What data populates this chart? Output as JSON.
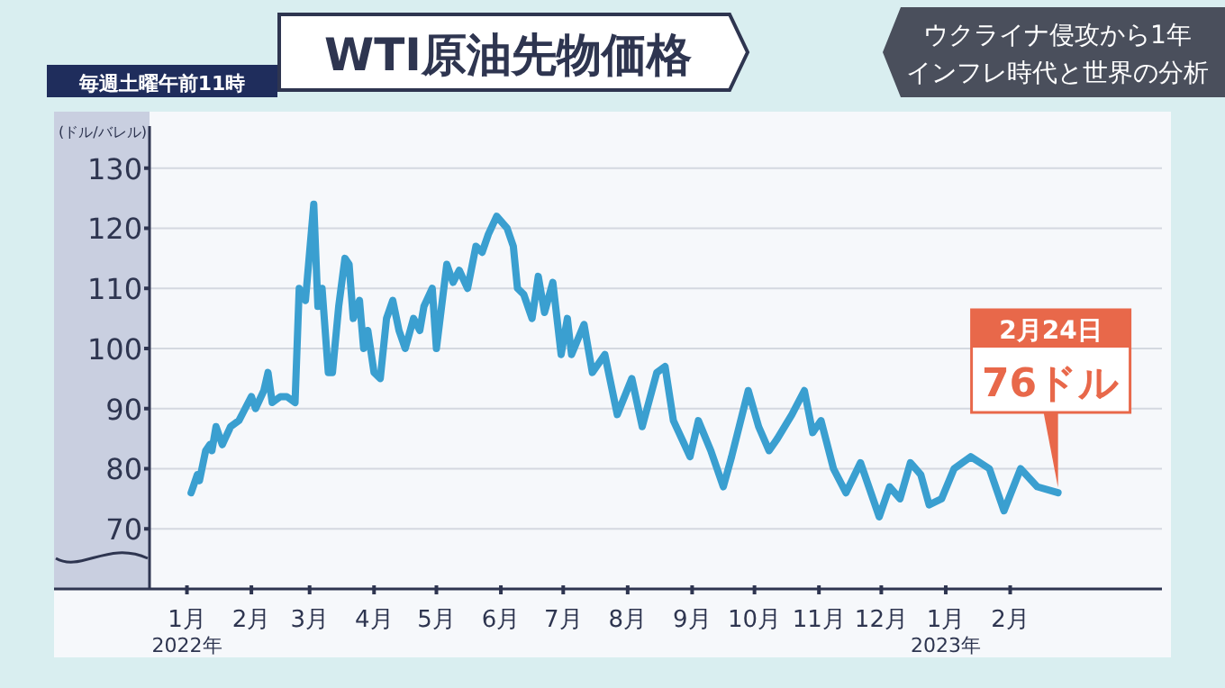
{
  "chart_data": {
    "type": "line",
    "title": "WTI原油先物価格",
    "subtitle": "ウクライナ侵攻から1年インフレ時代と世界の分析",
    "ylabel": "(ドル/バレル)",
    "annotations": [
      "毎週土曜午前11時",
      "2月24日",
      "76ドル"
    ],
    "x": [
      "2022-01-03",
      "2022-01-06",
      "2022-01-07",
      "2022-01-10",
      "2022-01-12",
      "2022-01-13",
      "2022-01-15",
      "2022-01-18",
      "2022-01-22",
      "2022-01-26",
      "2022-01-29",
      "2022-02-01",
      "2022-02-03",
      "2022-02-07",
      "2022-02-09",
      "2022-02-11",
      "2022-02-15",
      "2022-02-18",
      "2022-02-22",
      "2022-02-24",
      "2022-02-27",
      "2022-03-03",
      "2022-03-05",
      "2022-03-07",
      "2022-03-10",
      "2022-03-12",
      "2022-03-15",
      "2022-03-18",
      "2022-03-20",
      "2022-03-22",
      "2022-03-25",
      "2022-03-27",
      "2022-03-29",
      "2022-04-01",
      "2022-04-04",
      "2022-04-07",
      "2022-04-10",
      "2022-04-13",
      "2022-04-16",
      "2022-04-20",
      "2022-04-23",
      "2022-04-25",
      "2022-04-29",
      "2022-05-01",
      "2022-05-06",
      "2022-05-09",
      "2022-05-12",
      "2022-05-16",
      "2022-05-20",
      "2022-05-23",
      "2022-05-26",
      "2022-05-30",
      "2022-06-04",
      "2022-06-07",
      "2022-06-09",
      "2022-06-12",
      "2022-06-16",
      "2022-06-19",
      "2022-06-22",
      "2022-06-26",
      "2022-06-30",
      "2022-07-03",
      "2022-07-05",
      "2022-07-11",
      "2022-07-15",
      "2022-07-21",
      "2022-07-27",
      "2022-08-03",
      "2022-08-08",
      "2022-08-15",
      "2022-08-19",
      "2022-08-23",
      "2022-08-31",
      "2022-09-04",
      "2022-09-10",
      "2022-09-16",
      "2022-09-20",
      "2022-09-28",
      "2022-10-03",
      "2022-10-08",
      "2022-10-12",
      "2022-10-19",
      "2022-10-25",
      "2022-10-29",
      "2022-11-02",
      "2022-11-08",
      "2022-11-14",
      "2022-11-21",
      "2022-11-30",
      "2022-12-05",
      "2022-12-10",
      "2022-12-15",
      "2022-12-20",
      "2022-12-24",
      "2022-12-30",
      "2023-01-05",
      "2023-01-13",
      "2023-01-22",
      "2023-01-29",
      "2023-02-06",
      "2023-02-14",
      "2023-02-24"
    ],
    "series": [
      {
        "color": "#3a9fd0",
        "values": [
          76,
          79,
          78,
          83,
          84,
          83,
          87,
          84,
          87,
          88,
          90,
          92,
          90,
          93,
          96,
          91,
          92,
          92,
          91,
          110,
          108,
          124,
          107,
          110,
          96,
          96,
          107,
          115,
          114,
          105,
          108,
          100,
          103,
          96,
          95,
          105,
          108,
          103,
          100,
          105,
          103,
          107,
          110,
          100,
          114,
          111,
          113,
          110,
          117,
          116,
          119,
          122,
          120,
          117,
          110,
          109,
          105,
          112,
          106,
          111,
          99,
          105,
          99,
          104,
          96,
          99,
          89,
          95,
          87,
          96,
          97,
          88,
          82,
          88,
          83,
          77,
          82,
          93,
          87,
          83,
          85,
          89,
          93,
          86,
          88,
          80,
          76,
          81,
          72,
          77,
          75,
          81,
          79,
          74,
          75,
          80,
          82,
          80,
          73,
          80,
          77,
          76
        ]
      }
    ],
    "xlim": [
      "2021-12-14",
      "2023-04-15"
    ],
    "ylim": [
      60,
      137
    ],
    "yticks": [
      70,
      80,
      90,
      100,
      110,
      120,
      130
    ],
    "xticks": [
      {
        "value": "2022-01-01",
        "label": "1月\n2022年"
      },
      {
        "value": "2022-02-01",
        "label": "2月"
      },
      {
        "value": "2022-03-01",
        "label": "3月"
      },
      {
        "value": "2022-04-01",
        "label": "4月"
      },
      {
        "value": "2022-05-01",
        "label": "5月"
      },
      {
        "value": "2022-06-01",
        "label": "6月"
      },
      {
        "value": "2022-07-01",
        "label": "7月"
      },
      {
        "value": "2022-08-01",
        "label": "8月"
      },
      {
        "value": "2022-09-01",
        "label": "9月"
      },
      {
        "value": "2022-10-01",
        "label": "10月"
      },
      {
        "value": "2022-11-01",
        "label": "11月"
      },
      {
        "value": "2022-12-01",
        "label": "12月"
      },
      {
        "value": "2023-01-01",
        "label": "1月\n2023年"
      },
      {
        "value": "2023-02-01",
        "label": "2月"
      }
    ],
    "grid": "y"
  }
}
